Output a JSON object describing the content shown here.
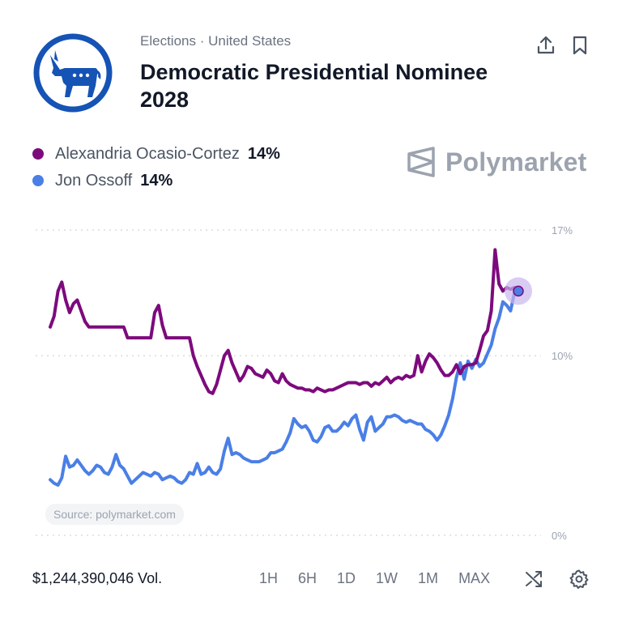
{
  "header": {
    "breadcrumb": [
      "Elections",
      "·",
      "United States"
    ],
    "title": "Democratic Presidential Nominee 2028"
  },
  "colors": {
    "series_a": "#7d0a7d",
    "series_b": "#4a7fe6",
    "logo": "#1553b5",
    "grid": "#d1d5db",
    "muted": "#9ca3af"
  },
  "icons": [
    "donkey-logo-icon",
    "share-icon",
    "bookmark-icon",
    "polymarket-logo-icon",
    "shuffle-icon",
    "gear-icon"
  ],
  "watermark": "Polymarket",
  "legend": [
    {
      "name": "Alexandria Ocasio-Cortez",
      "value": "14%"
    },
    {
      "name": "Jon Ossoff",
      "value": "14%"
    }
  ],
  "source": "Source: polymarket.com",
  "footer": {
    "volume": "$1,244,390,046 Vol.",
    "ranges": [
      "1H",
      "6H",
      "1D",
      "1W",
      "1M",
      "MAX"
    ]
  },
  "chart_data": {
    "type": "line",
    "title": "",
    "xlabel": "",
    "ylabel": "",
    "ylim": [
      0,
      17
    ],
    "yticks": [
      "0%",
      "10%",
      "17%"
    ],
    "ytick_values": [
      0,
      10,
      17
    ],
    "grid": true,
    "series": [
      {
        "name": "Alexandria Ocasio-Cortez",
        "values": [
          11.6,
          12.2,
          13.6,
          14.1,
          13.1,
          12.4,
          12.9,
          13.1,
          12.5,
          11.9,
          11.6,
          11.6,
          11.6,
          11.6,
          11.6,
          11.6,
          11.6,
          11.6,
          11.6,
          11.6,
          11.0,
          11.0,
          11.0,
          11.0,
          11.0,
          11.0,
          11.0,
          12.4,
          12.8,
          11.7,
          11.0,
          11.0,
          11.0,
          11.0,
          11.0,
          11.0,
          11.0,
          10.0,
          9.4,
          8.9,
          8.4,
          8.0,
          7.9,
          8.4,
          9.2,
          10.0,
          10.3,
          9.6,
          9.1,
          8.6,
          8.9,
          9.4,
          9.3,
          9.0,
          8.9,
          8.8,
          9.2,
          9.0,
          8.6,
          8.5,
          9.0,
          8.6,
          8.4,
          8.3,
          8.2,
          8.2,
          8.1,
          8.1,
          8.0,
          8.2,
          8.1,
          8.0,
          8.1,
          8.1,
          8.2,
          8.3,
          8.4,
          8.5,
          8.5,
          8.5,
          8.4,
          8.5,
          8.5,
          8.3,
          8.5,
          8.4,
          8.6,
          8.8,
          8.5,
          8.7,
          8.8,
          8.7,
          8.9,
          8.8,
          8.9,
          10.0,
          9.1,
          9.7,
          10.1,
          9.9,
          9.6,
          9.2,
          8.9,
          8.9,
          9.1,
          9.5,
          9.0,
          9.4,
          9.5,
          9.5,
          9.6,
          10.3,
          11.1,
          11.4,
          12.5,
          15.9,
          14.0,
          13.6,
          13.8,
          13.7,
          13.8,
          13.6
        ]
      },
      {
        "name": "Jon Ossoff",
        "values": [
          3.1,
          2.9,
          2.8,
          3.2,
          4.4,
          3.8,
          3.9,
          4.2,
          3.9,
          3.6,
          3.4,
          3.6,
          3.9,
          3.8,
          3.5,
          3.4,
          3.8,
          4.5,
          3.9,
          3.7,
          3.3,
          2.9,
          3.1,
          3.3,
          3.5,
          3.4,
          3.3,
          3.5,
          3.4,
          3.1,
          3.2,
          3.3,
          3.2,
          3.0,
          2.9,
          3.1,
          3.5,
          3.4,
          4.0,
          3.4,
          3.5,
          3.8,
          3.5,
          3.4,
          3.7,
          4.7,
          5.4,
          4.5,
          4.6,
          4.5,
          4.3,
          4.2,
          4.1,
          4.1,
          4.1,
          4.2,
          4.3,
          4.6,
          4.6,
          4.7,
          4.8,
          5.2,
          5.7,
          6.5,
          6.2,
          6.0,
          6.1,
          5.8,
          5.3,
          5.2,
          5.5,
          6.0,
          6.1,
          5.8,
          5.8,
          6.0,
          6.3,
          6.1,
          6.5,
          6.7,
          5.9,
          5.3,
          6.3,
          6.6,
          5.8,
          6.0,
          6.2,
          6.6,
          6.6,
          6.7,
          6.6,
          6.4,
          6.3,
          6.4,
          6.3,
          6.2,
          6.2,
          5.9,
          5.8,
          5.6,
          5.3,
          5.6,
          6.1,
          6.7,
          7.6,
          8.8,
          9.6,
          8.7,
          9.7,
          9.3,
          9.8,
          9.4,
          9.6,
          10.1,
          10.6,
          11.5,
          12.1,
          13.0,
          12.8,
          12.5,
          13.5,
          13.6
        ]
      }
    ]
  }
}
